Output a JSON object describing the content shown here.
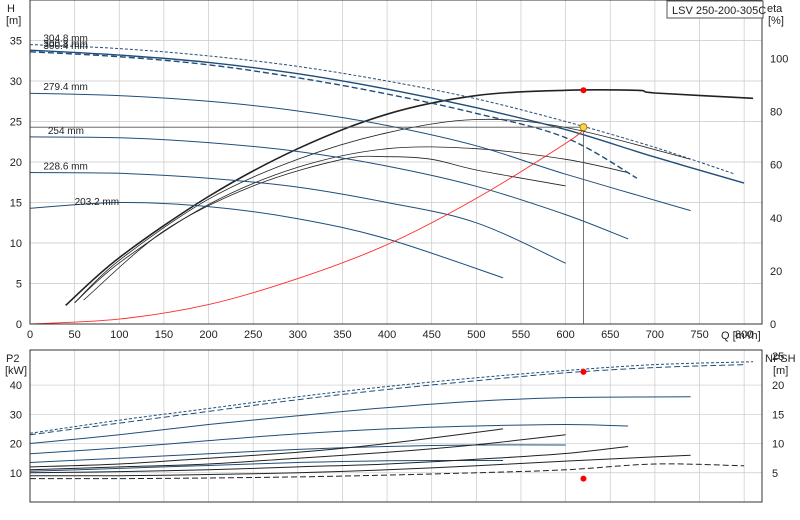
{
  "title": "LSV 250-200-305C",
  "colors": {
    "grid": "#c9c9c9",
    "impeller": "#1f4e79",
    "eff": "#222222",
    "system": "#ff2b2b",
    "duty_point": "#ff0000",
    "duty_marker": "#ffd24a",
    "axes": "#333333"
  },
  "chart_data": [
    {
      "type": "line",
      "panel": "head-efficiency",
      "xlabel": "Q [m³/h]",
      "x_unit": "[m³/h]",
      "ylabel": "H",
      "y_unit": "[m]",
      "y2label": "eta",
      "y2_unit": "[%]",
      "xlim": [
        0,
        820
      ],
      "ylim": [
        0,
        40
      ],
      "y2lim": [
        0,
        122
      ],
      "xticks": [
        "0",
        "50",
        "100",
        "150",
        "200",
        "250",
        "300",
        "350",
        "400",
        "450",
        "500",
        "550",
        "600",
        "650",
        "700",
        "750",
        "800"
      ],
      "yticks": [
        "0",
        "5",
        "10",
        "15",
        "20",
        "25",
        "30",
        "35"
      ],
      "y2ticks": [
        "0",
        "20",
        "40",
        "60",
        "80",
        "100"
      ],
      "grid": true,
      "impeller_curves": [
        {
          "label": "304.8 mm",
          "x": [
            0,
            100,
            200,
            300,
            400,
            500,
            600,
            700,
            790
          ],
          "y": [
            34.5,
            34,
            33.1,
            31.8,
            30,
            27.8,
            25,
            21.8,
            18.5
          ]
        },
        {
          "label": "300.8 mm",
          "x": [
            0,
            100,
            200,
            300,
            400,
            500,
            600,
            700,
            800
          ],
          "y": [
            33.8,
            33.2,
            32.3,
            30.9,
            29,
            26.7,
            24,
            20.6,
            17.4
          ]
        },
        {
          "label": "300.4 mm",
          "x": [
            0,
            100,
            200,
            300,
            400,
            500,
            600,
            680
          ],
          "y": [
            33.6,
            33,
            32,
            30.4,
            28.4,
            26,
            23,
            18
          ]
        },
        {
          "label": "279.4 mm",
          "x": [
            0,
            100,
            200,
            300,
            400,
            500,
            600,
            740
          ],
          "y": [
            28.5,
            28.2,
            27.5,
            26.3,
            24.5,
            22,
            18.5,
            14
          ]
        },
        {
          "label": "254 mm",
          "x": [
            0,
            100,
            200,
            300,
            400,
            500,
            600,
            670
          ],
          "y": [
            23.1,
            23,
            22.4,
            21.3,
            19.5,
            17,
            13.5,
            10.5
          ]
        },
        {
          "label": "228.6 mm",
          "x": [
            0,
            100,
            200,
            300,
            400,
            500,
            600
          ],
          "y": [
            18.7,
            18.6,
            18,
            16.9,
            15,
            12.5,
            7.5
          ]
        },
        {
          "label": "203.2 mm",
          "x": [
            0,
            100,
            200,
            300,
            400,
            530
          ],
          "y": [
            14.3,
            15,
            14.5,
            13,
            10.5,
            5.7
          ]
        }
      ],
      "efficiency_curves": [
        {
          "x": [
            40,
            100,
            200,
            300,
            400,
            500,
            600,
            680,
            700,
            810
          ],
          "y": [
            7,
            25,
            48,
            66,
            79,
            86,
            88,
            88,
            87,
            85
          ]
        },
        {
          "x": [
            50,
            100,
            200,
            300,
            400,
            500,
            600,
            740
          ],
          "y": [
            8,
            24,
            47,
            62,
            72,
            77,
            74,
            62
          ]
        },
        {
          "x": [
            50,
            100,
            200,
            300,
            400,
            500,
            600,
            670
          ],
          "y": [
            8,
            23,
            45,
            59,
            66,
            66,
            62,
            57
          ]
        },
        {
          "x": [
            60,
            150,
            250,
            350,
            400,
            450,
            500,
            600
          ],
          "y": [
            9,
            35,
            52,
            62,
            63,
            62,
            58,
            52
          ]
        }
      ],
      "system_curve": {
        "x": [
          0,
          100,
          200,
          300,
          400,
          500,
          600,
          620
        ],
        "y": [
          0,
          0.6,
          2.4,
          5.6,
          9.8,
          15.5,
          22.3,
          24
        ]
      },
      "duty_point": {
        "x": 620,
        "y": 24.3,
        "eta": 88
      },
      "drop_line_x": 620
    },
    {
      "type": "line",
      "panel": "power-npsh",
      "ylabel": "P2",
      "y_unit": "[kW]",
      "y2label": "NPSH",
      "y2_unit": "[m]",
      "xlim": [
        0,
        820
      ],
      "ylim": [
        0,
        52
      ],
      "y2lim": [
        0,
        26
      ],
      "yticks": [
        "10",
        "20",
        "30",
        "40"
      ],
      "y2ticks": [
        "5",
        "10",
        "15",
        "20",
        "25"
      ],
      "grid": true,
      "power_curves": [
        {
          "x": [
            0,
            100,
            200,
            300,
            400,
            500,
            600,
            700,
            810
          ],
          "y": [
            23.5,
            28,
            32,
            36,
            39.5,
            42.5,
            45,
            47,
            48
          ]
        },
        {
          "x": [
            0,
            100,
            200,
            300,
            400,
            500,
            600,
            700,
            800
          ],
          "y": [
            23,
            27,
            31,
            35,
            38.5,
            41.5,
            44.2,
            46,
            47
          ]
        },
        {
          "x": [
            0,
            100,
            200,
            300,
            400,
            500,
            600,
            740
          ],
          "y": [
            20,
            23,
            26.5,
            29.5,
            32.3,
            34.5,
            35.7,
            36
          ]
        },
        {
          "x": [
            0,
            100,
            200,
            300,
            400,
            500,
            600,
            670
          ],
          "y": [
            16.5,
            18.5,
            21,
            23.3,
            25,
            26,
            26.5,
            26
          ]
        },
        {
          "x": [
            0,
            100,
            200,
            300,
            400,
            500,
            600
          ],
          "y": [
            13.5,
            15,
            16.5,
            18,
            19,
            19.5,
            19.5
          ]
        },
        {
          "x": [
            0,
            100,
            200,
            300,
            400,
            530
          ],
          "y": [
            10.5,
            11.5,
            12.5,
            13.5,
            14.1,
            14.2
          ]
        }
      ],
      "npsh_curves": [
        {
          "x": [
            0,
            100,
            200,
            300,
            400,
            500,
            600,
            700,
            800
          ],
          "y": [
            4,
            4,
            4.1,
            4.3,
            4.6,
            5,
            5.5,
            6.5,
            6.2
          ]
        },
        {
          "x": [
            0,
            100,
            200,
            300,
            400,
            500,
            600,
            740
          ],
          "y": [
            4.5,
            4.5,
            4.7,
            5,
            5.5,
            6.2,
            7,
            8
          ]
        },
        {
          "x": [
            0,
            100,
            200,
            300,
            400,
            500,
            600,
            670
          ],
          "y": [
            5,
            5.2,
            5.5,
            6,
            6.5,
            7.3,
            8.3,
            9.5
          ]
        },
        {
          "x": [
            0,
            100,
            200,
            300,
            400,
            500,
            600
          ],
          "y": [
            5.5,
            6,
            6.5,
            7.5,
            8.5,
            9.8,
            11.5
          ]
        },
        {
          "x": [
            0,
            100,
            200,
            300,
            400,
            530
          ],
          "y": [
            6,
            6.5,
            7.5,
            8.5,
            10,
            12.5
          ]
        }
      ],
      "duty_power": {
        "x": 620,
        "y": 44.5
      },
      "duty_npsh": {
        "x": 620,
        "y": 4
      }
    }
  ]
}
